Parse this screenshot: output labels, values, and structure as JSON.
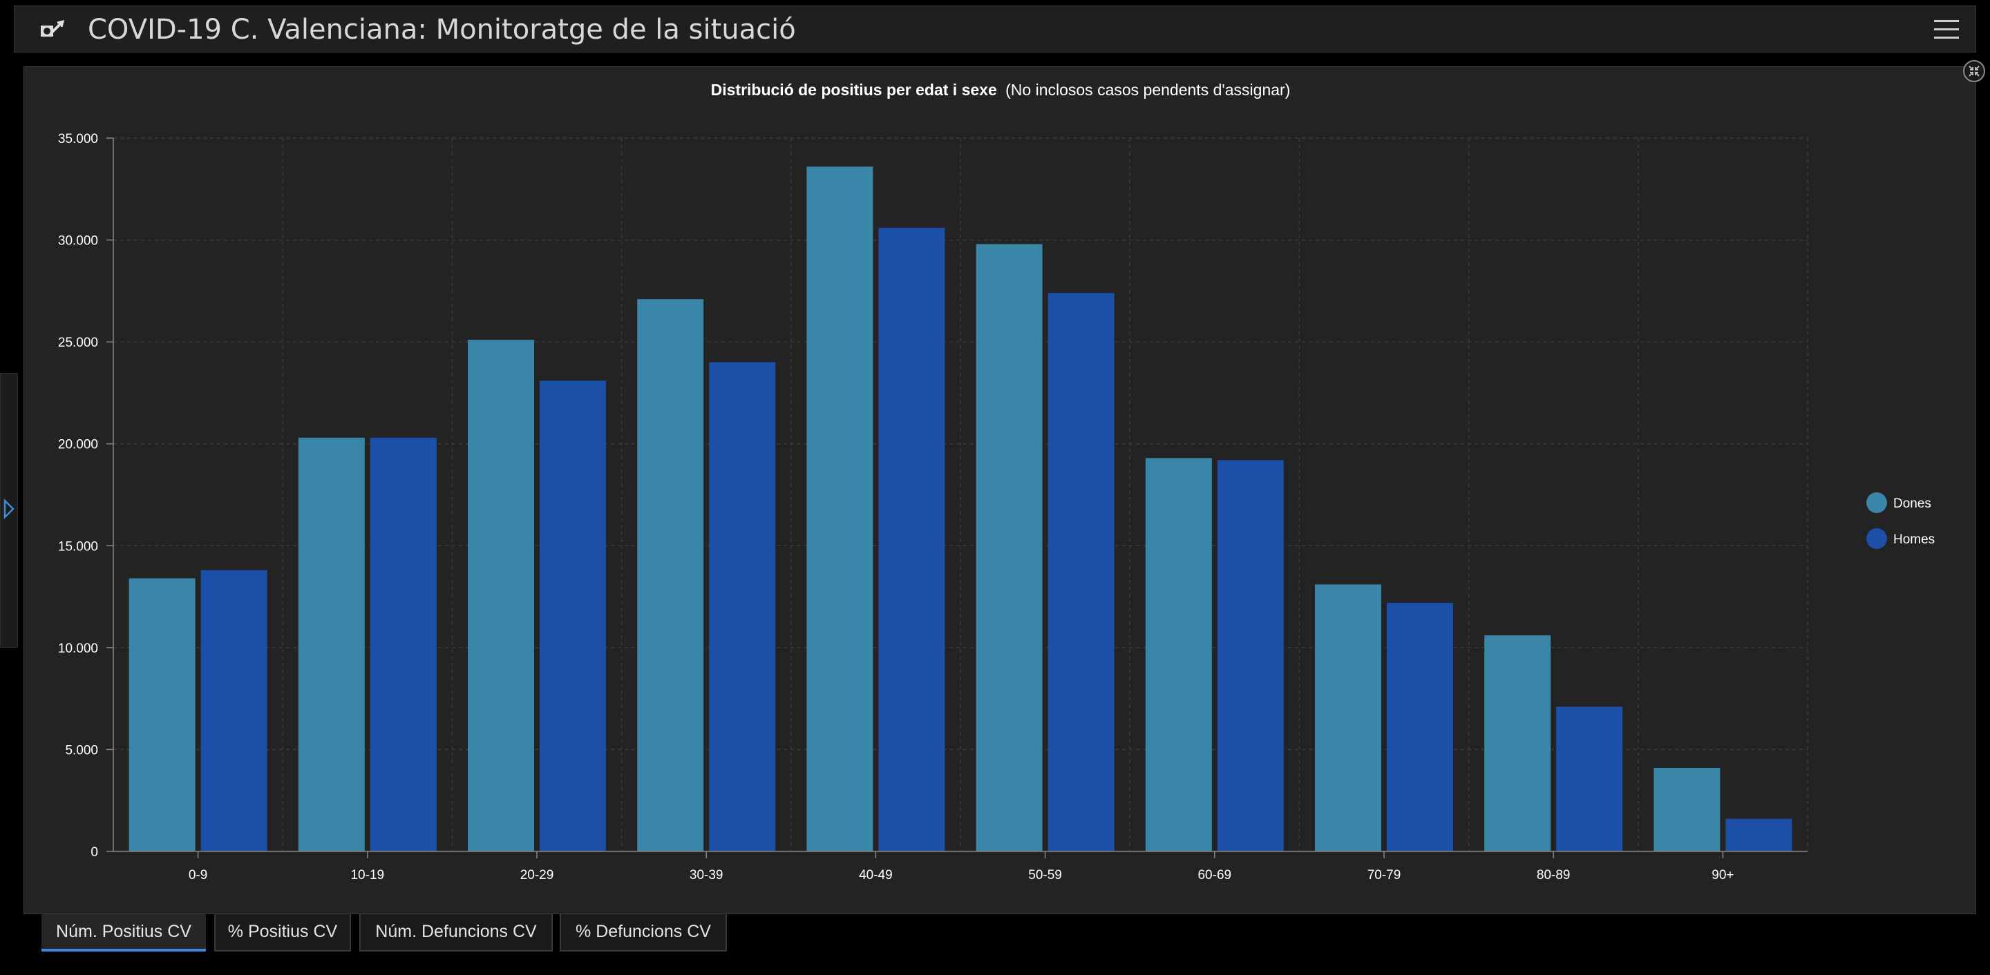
{
  "header": {
    "title": "COVID-19 C. Valenciana: Monitoratge de la situació",
    "logo_icon": "covid-logo-icon",
    "menu_icon": "hamburger-menu-icon"
  },
  "side_panel": {
    "expand_icon": "chevron-right-icon"
  },
  "panel": {
    "collapse_icon": "collapse-arrows-icon"
  },
  "colors": {
    "background": "#000000",
    "panel": "#232323",
    "dones": "#3a86a8",
    "homes": "#1c4fa8",
    "accent": "#3d8bd8"
  },
  "tabs": [
    {
      "label": "Núm. Positius CV",
      "active": true
    },
    {
      "label": "% Positius CV",
      "active": false
    },
    {
      "label": "Núm. Defuncions CV",
      "active": false
    },
    {
      "label": "% Defuncions CV",
      "active": false
    }
  ],
  "chart_data": {
    "type": "bar",
    "title": "Distribució de positius per edat i sexe",
    "subtitle": "(No inclosos casos pendents d'assignar)",
    "categories": [
      "0-9",
      "10-19",
      "20-29",
      "30-39",
      "40-49",
      "50-59",
      "60-69",
      "70-79",
      "80-89",
      "90+"
    ],
    "series": [
      {
        "name": "Dones",
        "color": "#3a86a8",
        "values": [
          13400,
          20300,
          25100,
          27100,
          33600,
          29800,
          19300,
          13100,
          10600,
          4100
        ]
      },
      {
        "name": "Homes",
        "color": "#1c4fa8",
        "values": [
          13800,
          20300,
          23100,
          24000,
          30600,
          27400,
          19200,
          12200,
          7100,
          1600
        ]
      }
    ],
    "ylim": [
      0,
      35000
    ],
    "yticks": [
      "0",
      "5.000",
      "10.000",
      "15.000",
      "20.000",
      "25.000",
      "30.000",
      "35.000"
    ],
    "xlabel": "",
    "ylabel": "",
    "grid": true,
    "legend_position": "right"
  }
}
